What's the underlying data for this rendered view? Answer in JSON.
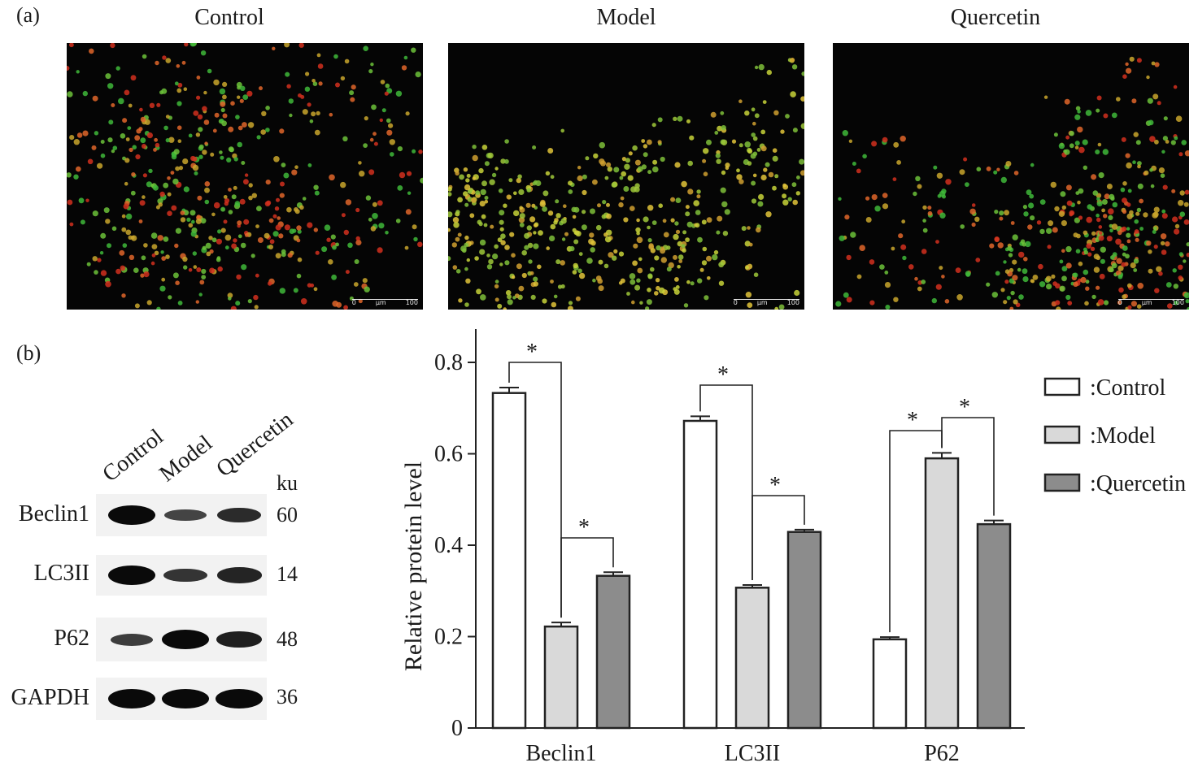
{
  "panels": {
    "a": "(a)",
    "b": "(b)"
  },
  "micrographs": [
    {
      "title": "Control",
      "scale_labels": [
        "0",
        "μm",
        "100"
      ],
      "seed": 11,
      "palette": "mixed"
    },
    {
      "title": "Model",
      "scale_labels": [
        "0",
        "μm",
        "100"
      ],
      "seed": 23,
      "palette": "yellow"
    },
    {
      "title": "Quercetin",
      "scale_labels": [
        "0",
        "μm",
        "100"
      ],
      "seed": 37,
      "palette": "mixed"
    }
  ],
  "western_blot": {
    "lanes": [
      "Control",
      "Model",
      "Quercetin"
    ],
    "unit": "ku",
    "rows": [
      {
        "protein": "Beclin1",
        "ku": "60",
        "intensity": [
          1.0,
          0.45,
          0.7
        ]
      },
      {
        "protein": "LC3II",
        "ku": "14",
        "intensity": [
          1.0,
          0.6,
          0.75
        ]
      },
      {
        "protein": "P62",
        "ku": "48",
        "intensity": [
          0.5,
          1.0,
          0.8
        ]
      },
      {
        "protein": "GAPDH",
        "ku": "36",
        "intensity": [
          1.0,
          1.0,
          1.0
        ]
      }
    ]
  },
  "chart_data": {
    "type": "bar",
    "categories": [
      "Beclin1",
      "LC3II",
      "P62"
    ],
    "series": [
      {
        "name": ":Control",
        "values": [
          0.733,
          0.672,
          0.194
        ],
        "errors": [
          0.012,
          0.01,
          0.005
        ],
        "color": "#ffffff"
      },
      {
        "name": ":Model",
        "values": [
          0.222,
          0.307,
          0.59
        ],
        "errors": [
          0.009,
          0.006,
          0.012
        ],
        "color": "#d9d9d9"
      },
      {
        "name": ":Quercetin",
        "values": [
          0.333,
          0.429,
          0.446
        ],
        "errors": [
          0.008,
          0.005,
          0.008
        ],
        "color": "#8c8c8c"
      }
    ],
    "xlabel": "",
    "ylabel": "Relative protein level",
    "ylim": [
      0,
      0.8
    ],
    "yticks": [
      "0",
      "0.2",
      "0.4",
      "0.6",
      "0.8"
    ],
    "ytick_values": [
      0,
      0.2,
      0.4,
      0.6,
      0.8
    ],
    "significance": [
      {
        "category": 0,
        "from": 0,
        "to": 1,
        "label": "*"
      },
      {
        "category": 0,
        "from": 1,
        "to": 2,
        "label": "*"
      },
      {
        "category": 1,
        "from": 0,
        "to": 1,
        "label": "*"
      },
      {
        "category": 1,
        "from": 1,
        "to": 2,
        "label": "*"
      },
      {
        "category": 2,
        "from": 0,
        "to": 1,
        "label": "*"
      },
      {
        "category": 2,
        "from": 1,
        "to": 2,
        "label": "*"
      }
    ],
    "legend": "right"
  }
}
